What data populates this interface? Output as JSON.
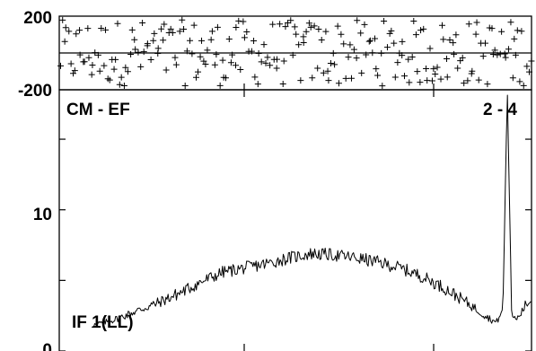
{
  "chart_data": [
    {
      "type": "scatter",
      "panel": "phase",
      "ylim": [
        -200,
        200
      ],
      "xlim": [
        0,
        1
      ],
      "ytick_labels": [
        "200",
        "-200"
      ],
      "ytick_values": [
        200,
        -200
      ],
      "grid": false
    },
    {
      "type": "line",
      "panel": "amplitude",
      "ylim": [
        0,
        18.5
      ],
      "xlim": [
        0,
        1
      ],
      "ytick_labels": [
        "10",
        "0"
      ],
      "ytick_values": [
        10,
        0
      ],
      "annotations": {
        "top_left": "CM - EF",
        "top_right": "2 - 4",
        "bottom_left": "IF 1(LL)"
      },
      "grid": false,
      "series": [
        {
          "x": [
            0.0,
            0.05,
            0.1,
            0.15,
            0.2,
            0.25,
            0.3,
            0.35,
            0.4,
            0.45,
            0.5,
            0.55,
            0.6,
            0.65,
            0.7,
            0.75,
            0.8,
            0.85,
            0.9,
            0.92,
            0.935,
            0.945,
            0.955,
            0.965,
            0.975,
            0.985,
            1.0
          ],
          "values": [
            1.8,
            2.2,
            2.8,
            3.4,
            4.1,
            4.9,
            5.6,
            5.9,
            6.2,
            6.6,
            6.9,
            6.8,
            6.6,
            6.3,
            5.9,
            5.3,
            4.5,
            3.5,
            2.4,
            2.0,
            3.0,
            18.5,
            2.5,
            2.2,
            2.6,
            3.2,
            3.6
          ]
        }
      ]
    }
  ]
}
